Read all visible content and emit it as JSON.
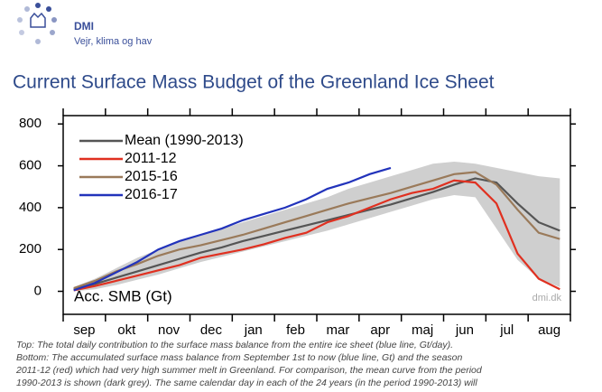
{
  "header": {
    "brand": "DMI",
    "tagline": "Vejr, klima og hav"
  },
  "chart_data": {
    "type": "line",
    "title": "Current Surface Mass Budget of the Greenland Ice Sheet",
    "y_label": "Acc. SMB (Gt)",
    "watermark": "dmi.dk",
    "categories": [
      "sep",
      null,
      "okt",
      null,
      "nov",
      null,
      "dec",
      null,
      "jan",
      null,
      "feb",
      null,
      "mar",
      null,
      "apr",
      null,
      "maj",
      null,
      "jun",
      null,
      "jul",
      null,
      "aug",
      null
    ],
    "ylim": [
      -110,
      840
    ],
    "yticks": [
      0,
      200,
      400,
      600,
      800
    ],
    "legend": "upper left",
    "band": {
      "color": "#cfcfcf",
      "lower": [
        0,
        10,
        30,
        55,
        80,
        110,
        140,
        165,
        190,
        215,
        240,
        265,
        290,
        320,
        350,
        380,
        410,
        440,
        460,
        450,
        300,
        150,
        60,
        20
      ],
      "upper": [
        20,
        60,
        110,
        160,
        200,
        240,
        270,
        300,
        330,
        360,
        390,
        420,
        450,
        490,
        520,
        550,
        580,
        610,
        620,
        610,
        590,
        570,
        550,
        540
      ]
    },
    "series": [
      {
        "name": "Mean (1990-2013)",
        "color": "#555555",
        "values": [
          10,
          35,
          65,
          95,
          125,
          155,
          185,
          210,
          240,
          265,
          290,
          315,
          340,
          365,
          390,
          415,
          445,
          475,
          510,
          540,
          520,
          420,
          330,
          290
        ]
      },
      {
        "name": "2011-12",
        "color": "#e03020",
        "values": [
          5,
          25,
          50,
          75,
          100,
          125,
          160,
          180,
          200,
          225,
          255,
          280,
          330,
          360,
          400,
          440,
          470,
          490,
          530,
          520,
          420,
          180,
          60,
          10
        ]
      },
      {
        "name": "2015-16",
        "color": "#9a7a5a",
        "values": [
          15,
          50,
          95,
          130,
          170,
          200,
          220,
          245,
          270,
          300,
          330,
          360,
          390,
          420,
          445,
          470,
          500,
          530,
          560,
          570,
          510,
          390,
          280,
          250
        ]
      },
      {
        "name": "2016-17",
        "color": "#2233bb",
        "values": [
          5,
          40,
          90,
          140,
          200,
          240,
          270,
          300,
          340,
          370,
          400,
          440,
          490,
          520,
          560,
          590,
          null,
          null,
          null,
          null,
          null,
          null,
          null,
          null
        ]
      }
    ],
    "caption": [
      "Top: The total daily contribution to the surface mass balance from the entire ice sheet (blue line, Gt/day).",
      "Bottom: The accumulated surface mass balance from September 1st to now (blue line, Gt) and the season",
      "2011-12 (red) which had very high summer melt in Greenland. For comparison, the mean curve from the period",
      "1990-2013 is shown (dark grey). The same calendar day in each of the 24 years (in the period 1990-2013) will"
    ]
  }
}
